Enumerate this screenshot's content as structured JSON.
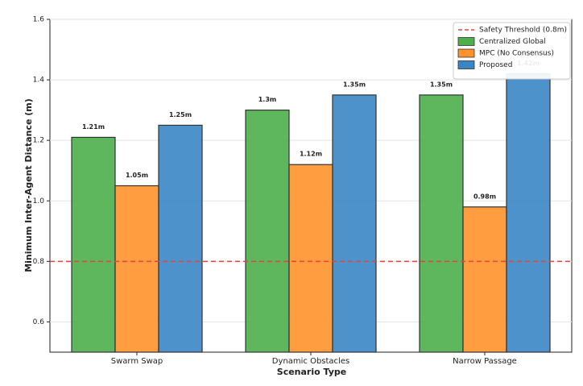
{
  "chart_data": {
    "type": "bar",
    "x_label": "Scenario Type",
    "y_label": "Minimum Inter-Agent Distance (m)",
    "categories": [
      "Swarm Swap",
      "Dynamic Obstacles",
      "Narrow Passage"
    ],
    "series": [
      {
        "name": "Centralized Global",
        "color": "#4daf4a",
        "values": [
          1.21,
          1.3,
          1.35
        ],
        "value_labels": [
          "1.21m",
          "1.3m",
          "1.35m"
        ]
      },
      {
        "name": "MPC (No Consensus)",
        "color": "#ff922b",
        "values": [
          1.05,
          1.12,
          0.98
        ],
        "value_labels": [
          "1.05m",
          "1.12m",
          "0.98m"
        ]
      },
      {
        "name": "Proposed",
        "color": "#3a86c4",
        "values": [
          1.25,
          1.35,
          1.42
        ],
        "value_labels": [
          "1.25m",
          "1.35m",
          "1.42m"
        ]
      }
    ],
    "threshold": {
      "value": 0.8,
      "label": "Safety Threshold (0.8m)",
      "color": "#e8423a"
    },
    "ylim": [
      0.5,
      1.6
    ],
    "yticks": [
      0.6,
      0.8,
      {
        "value": 1,
        "label": "1.0"
      },
      1.2,
      1.4,
      1.6
    ],
    "grid": true,
    "legend": "upper-right"
  }
}
